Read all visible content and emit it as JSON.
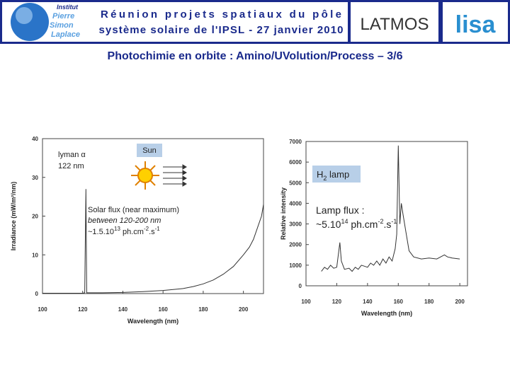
{
  "header": {
    "line1": "Réunion projets spatiaux du pôle",
    "line2": "système solaire de l'IPSL - 27 janvier 2010",
    "ipsl_logo": [
      "Institut",
      "Pierre",
      "Simon",
      "Laplace"
    ],
    "latmos_logo": "LATMOS",
    "lisa_logo": "lisa"
  },
  "title": "Photochimie en orbite : Amino/UVolution/Process – 3/6",
  "chart_data": [
    {
      "type": "line",
      "xlabel": "Wavelength (nm)",
      "ylabel": "Irradiance (mW/m²/nm)",
      "color": "#333333",
      "x": [
        100,
        104,
        108,
        112,
        116,
        120,
        121,
        121.6,
        122,
        124,
        130,
        140,
        150,
        160,
        170,
        175,
        180,
        185,
        190,
        195,
        200,
        203,
        205,
        207,
        209,
        210
      ],
      "values": [
        0.1,
        0.1,
        0.1,
        0.1,
        0.1,
        0.1,
        0.2,
        27,
        0.2,
        0.2,
        0.2,
        0.3,
        0.5,
        0.8,
        1.3,
        1.8,
        2.5,
        3.5,
        5,
        7,
        10,
        12,
        14,
        17,
        20,
        23
      ],
      "xlim": [
        100,
        210
      ],
      "ylim": [
        0,
        40
      ],
      "xticks": [
        100,
        120,
        140,
        160,
        180,
        200
      ],
      "yticks": [
        0,
        10,
        20,
        30,
        40
      ],
      "annotations": {
        "lyman": "lyman α",
        "lyman_wl": "122 nm",
        "sun": "Sun",
        "flux_title": "Solar flux (near maximum)",
        "flux_range": "between 120-200 nm",
        "flux_value": [
          "~1.5.10",
          "13",
          " ph.cm",
          "-2",
          ".s",
          "-1"
        ]
      }
    },
    {
      "type": "line",
      "xlabel": "Wavelength (nm)",
      "ylabel": "Relative intensity",
      "color": "#333333",
      "x": [
        110,
        112,
        114,
        116,
        118,
        120,
        121,
        122,
        123,
        125,
        128,
        130,
        132,
        134,
        136,
        138,
        140,
        142,
        144,
        146,
        148,
        150,
        152,
        154,
        156,
        158,
        159,
        160,
        161,
        162,
        163,
        165,
        167,
        170,
        175,
        180,
        185,
        190,
        192,
        195,
        200
      ],
      "values": [
        700,
        900,
        800,
        1000,
        850,
        900,
        1500,
        2100,
        1200,
        800,
        850,
        700,
        900,
        800,
        1000,
        950,
        900,
        1100,
        1000,
        1200,
        1000,
        1300,
        1100,
        1400,
        1200,
        1800,
        2500,
        6800,
        3000,
        4000,
        3500,
        2600,
        1700,
        1400,
        1300,
        1350,
        1300,
        1500,
        1400,
        1350,
        1300
      ],
      "xlim": [
        100,
        205
      ],
      "ylim": [
        0,
        7000
      ],
      "xticks": [
        100,
        120,
        140,
        160,
        180,
        200
      ],
      "yticks": [
        0,
        1000,
        2000,
        3000,
        4000,
        5000,
        6000,
        7000
      ],
      "annotations": {
        "lamp": [
          "H",
          "2",
          " lamp"
        ],
        "flux_title": "Lamp flux :",
        "flux_value": [
          "~5.10",
          "14",
          " ph.cm",
          "-2",
          ".s",
          "-1"
        ]
      }
    }
  ]
}
